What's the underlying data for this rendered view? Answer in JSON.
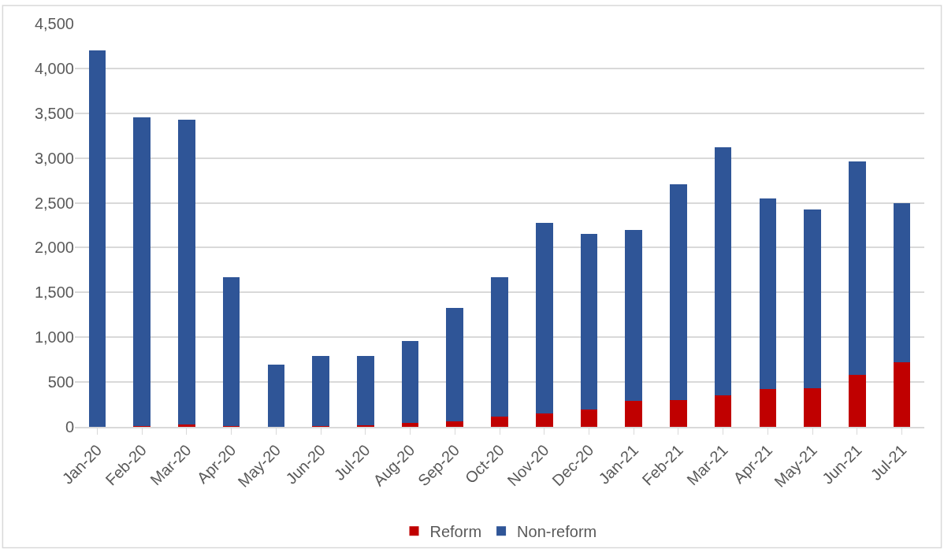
{
  "chart_data": {
    "type": "bar",
    "stacked": true,
    "categories": [
      "Jan-20",
      "Feb-20",
      "Mar-20",
      "Apr-20",
      "May-20",
      "Jun-20",
      "Jul-20",
      "Aug-20",
      "Sep-20",
      "Oct-20",
      "Nov-20",
      "Dec-20",
      "Jan-21",
      "Feb-21",
      "Mar-21",
      "Apr-21",
      "May-21",
      "Jun-21",
      "Jul-21"
    ],
    "series": [
      {
        "name": "Reform",
        "color": "#c00000",
        "values": [
          0,
          5,
          30,
          5,
          0,
          5,
          20,
          45,
          60,
          110,
          150,
          190,
          290,
          295,
          355,
          420,
          435,
          580,
          720
        ]
      },
      {
        "name": "Non-reform",
        "color": "#2f5597",
        "values": [
          4200,
          3445,
          3400,
          1665,
          695,
          785,
          770,
          910,
          1270,
          1560,
          2125,
          1960,
          1905,
          2415,
          2765,
          2130,
          1990,
          2385,
          1780
        ]
      }
    ],
    "ylim": [
      0,
      4500
    ],
    "yticks": [
      {
        "value": 0,
        "label": "0"
      },
      {
        "value": 500,
        "label": "500"
      },
      {
        "value": 1000,
        "label": "1,000"
      },
      {
        "value": 1500,
        "label": "1,500"
      },
      {
        "value": 2000,
        "label": "2,000"
      },
      {
        "value": 2500,
        "label": "2,500"
      },
      {
        "value": 3000,
        "label": "3,000"
      },
      {
        "value": 3500,
        "label": "3,500"
      },
      {
        "value": 4000,
        "label": "4,000"
      },
      {
        "value": 4500,
        "label": "4,500"
      }
    ],
    "grid": "y",
    "legend": "bottom"
  }
}
